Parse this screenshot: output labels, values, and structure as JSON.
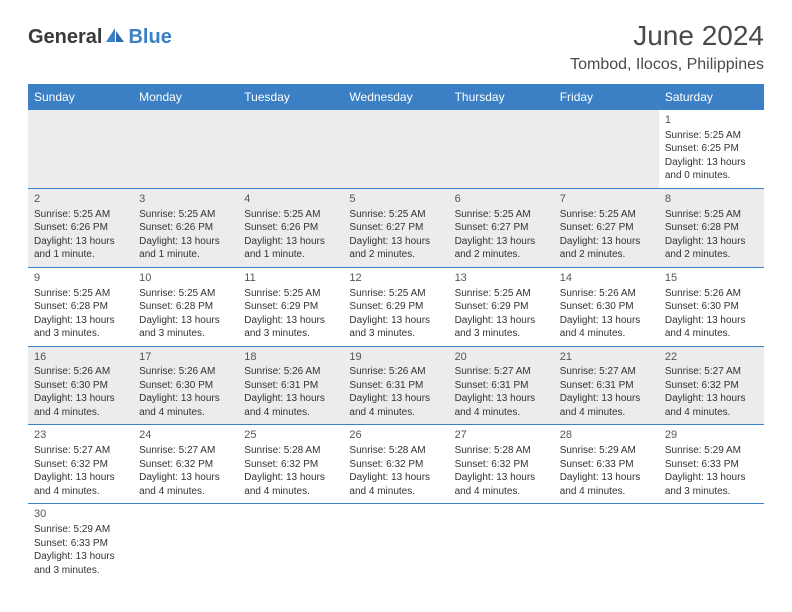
{
  "logo": {
    "text1": "General",
    "text2": "Blue"
  },
  "title": "June 2024",
  "location": "Tombod, Ilocos, Philippines",
  "colors": {
    "header_bg": "#3b7fc4",
    "header_fg": "#ffffff",
    "shade": "#ececec",
    "border": "#3b7fc4",
    "text": "#333333"
  },
  "weekdays": [
    "Sunday",
    "Monday",
    "Tuesday",
    "Wednesday",
    "Thursday",
    "Friday",
    "Saturday"
  ],
  "weeks": [
    [
      {
        "empty": true,
        "shaded": true
      },
      {
        "empty": true,
        "shaded": true
      },
      {
        "empty": true,
        "shaded": true
      },
      {
        "empty": true,
        "shaded": true
      },
      {
        "empty": true,
        "shaded": true
      },
      {
        "empty": true,
        "shaded": true
      },
      {
        "day": "1",
        "sunrise": "Sunrise: 5:25 AM",
        "sunset": "Sunset: 6:25 PM",
        "daylight": "Daylight: 13 hours and 0 minutes."
      }
    ],
    [
      {
        "day": "2",
        "sunrise": "Sunrise: 5:25 AM",
        "sunset": "Sunset: 6:26 PM",
        "daylight": "Daylight: 13 hours and 1 minute.",
        "shaded": true
      },
      {
        "day": "3",
        "sunrise": "Sunrise: 5:25 AM",
        "sunset": "Sunset: 6:26 PM",
        "daylight": "Daylight: 13 hours and 1 minute.",
        "shaded": true
      },
      {
        "day": "4",
        "sunrise": "Sunrise: 5:25 AM",
        "sunset": "Sunset: 6:26 PM",
        "daylight": "Daylight: 13 hours and 1 minute.",
        "shaded": true
      },
      {
        "day": "5",
        "sunrise": "Sunrise: 5:25 AM",
        "sunset": "Sunset: 6:27 PM",
        "daylight": "Daylight: 13 hours and 2 minutes.",
        "shaded": true
      },
      {
        "day": "6",
        "sunrise": "Sunrise: 5:25 AM",
        "sunset": "Sunset: 6:27 PM",
        "daylight": "Daylight: 13 hours and 2 minutes.",
        "shaded": true
      },
      {
        "day": "7",
        "sunrise": "Sunrise: 5:25 AM",
        "sunset": "Sunset: 6:27 PM",
        "daylight": "Daylight: 13 hours and 2 minutes.",
        "shaded": true
      },
      {
        "day": "8",
        "sunrise": "Sunrise: 5:25 AM",
        "sunset": "Sunset: 6:28 PM",
        "daylight": "Daylight: 13 hours and 2 minutes.",
        "shaded": true
      }
    ],
    [
      {
        "day": "9",
        "sunrise": "Sunrise: 5:25 AM",
        "sunset": "Sunset: 6:28 PM",
        "daylight": "Daylight: 13 hours and 3 minutes."
      },
      {
        "day": "10",
        "sunrise": "Sunrise: 5:25 AM",
        "sunset": "Sunset: 6:28 PM",
        "daylight": "Daylight: 13 hours and 3 minutes."
      },
      {
        "day": "11",
        "sunrise": "Sunrise: 5:25 AM",
        "sunset": "Sunset: 6:29 PM",
        "daylight": "Daylight: 13 hours and 3 minutes."
      },
      {
        "day": "12",
        "sunrise": "Sunrise: 5:25 AM",
        "sunset": "Sunset: 6:29 PM",
        "daylight": "Daylight: 13 hours and 3 minutes."
      },
      {
        "day": "13",
        "sunrise": "Sunrise: 5:25 AM",
        "sunset": "Sunset: 6:29 PM",
        "daylight": "Daylight: 13 hours and 3 minutes."
      },
      {
        "day": "14",
        "sunrise": "Sunrise: 5:26 AM",
        "sunset": "Sunset: 6:30 PM",
        "daylight": "Daylight: 13 hours and 4 minutes."
      },
      {
        "day": "15",
        "sunrise": "Sunrise: 5:26 AM",
        "sunset": "Sunset: 6:30 PM",
        "daylight": "Daylight: 13 hours and 4 minutes."
      }
    ],
    [
      {
        "day": "16",
        "sunrise": "Sunrise: 5:26 AM",
        "sunset": "Sunset: 6:30 PM",
        "daylight": "Daylight: 13 hours and 4 minutes.",
        "shaded": true
      },
      {
        "day": "17",
        "sunrise": "Sunrise: 5:26 AM",
        "sunset": "Sunset: 6:30 PM",
        "daylight": "Daylight: 13 hours and 4 minutes.",
        "shaded": true
      },
      {
        "day": "18",
        "sunrise": "Sunrise: 5:26 AM",
        "sunset": "Sunset: 6:31 PM",
        "daylight": "Daylight: 13 hours and 4 minutes.",
        "shaded": true
      },
      {
        "day": "19",
        "sunrise": "Sunrise: 5:26 AM",
        "sunset": "Sunset: 6:31 PM",
        "daylight": "Daylight: 13 hours and 4 minutes.",
        "shaded": true
      },
      {
        "day": "20",
        "sunrise": "Sunrise: 5:27 AM",
        "sunset": "Sunset: 6:31 PM",
        "daylight": "Daylight: 13 hours and 4 minutes.",
        "shaded": true
      },
      {
        "day": "21",
        "sunrise": "Sunrise: 5:27 AM",
        "sunset": "Sunset: 6:31 PM",
        "daylight": "Daylight: 13 hours and 4 minutes.",
        "shaded": true
      },
      {
        "day": "22",
        "sunrise": "Sunrise: 5:27 AM",
        "sunset": "Sunset: 6:32 PM",
        "daylight": "Daylight: 13 hours and 4 minutes.",
        "shaded": true
      }
    ],
    [
      {
        "day": "23",
        "sunrise": "Sunrise: 5:27 AM",
        "sunset": "Sunset: 6:32 PM",
        "daylight": "Daylight: 13 hours and 4 minutes."
      },
      {
        "day": "24",
        "sunrise": "Sunrise: 5:27 AM",
        "sunset": "Sunset: 6:32 PM",
        "daylight": "Daylight: 13 hours and 4 minutes."
      },
      {
        "day": "25",
        "sunrise": "Sunrise: 5:28 AM",
        "sunset": "Sunset: 6:32 PM",
        "daylight": "Daylight: 13 hours and 4 minutes."
      },
      {
        "day": "26",
        "sunrise": "Sunrise: 5:28 AM",
        "sunset": "Sunset: 6:32 PM",
        "daylight": "Daylight: 13 hours and 4 minutes."
      },
      {
        "day": "27",
        "sunrise": "Sunrise: 5:28 AM",
        "sunset": "Sunset: 6:32 PM",
        "daylight": "Daylight: 13 hours and 4 minutes."
      },
      {
        "day": "28",
        "sunrise": "Sunrise: 5:29 AM",
        "sunset": "Sunset: 6:33 PM",
        "daylight": "Daylight: 13 hours and 4 minutes."
      },
      {
        "day": "29",
        "sunrise": "Sunrise: 5:29 AM",
        "sunset": "Sunset: 6:33 PM",
        "daylight": "Daylight: 13 hours and 3 minutes."
      }
    ],
    [
      {
        "day": "30",
        "sunrise": "Sunrise: 5:29 AM",
        "sunset": "Sunset: 6:33 PM",
        "daylight": "Daylight: 13 hours and 3 minutes."
      },
      {
        "empty": true
      },
      {
        "empty": true
      },
      {
        "empty": true
      },
      {
        "empty": true
      },
      {
        "empty": true
      },
      {
        "empty": true
      }
    ]
  ]
}
